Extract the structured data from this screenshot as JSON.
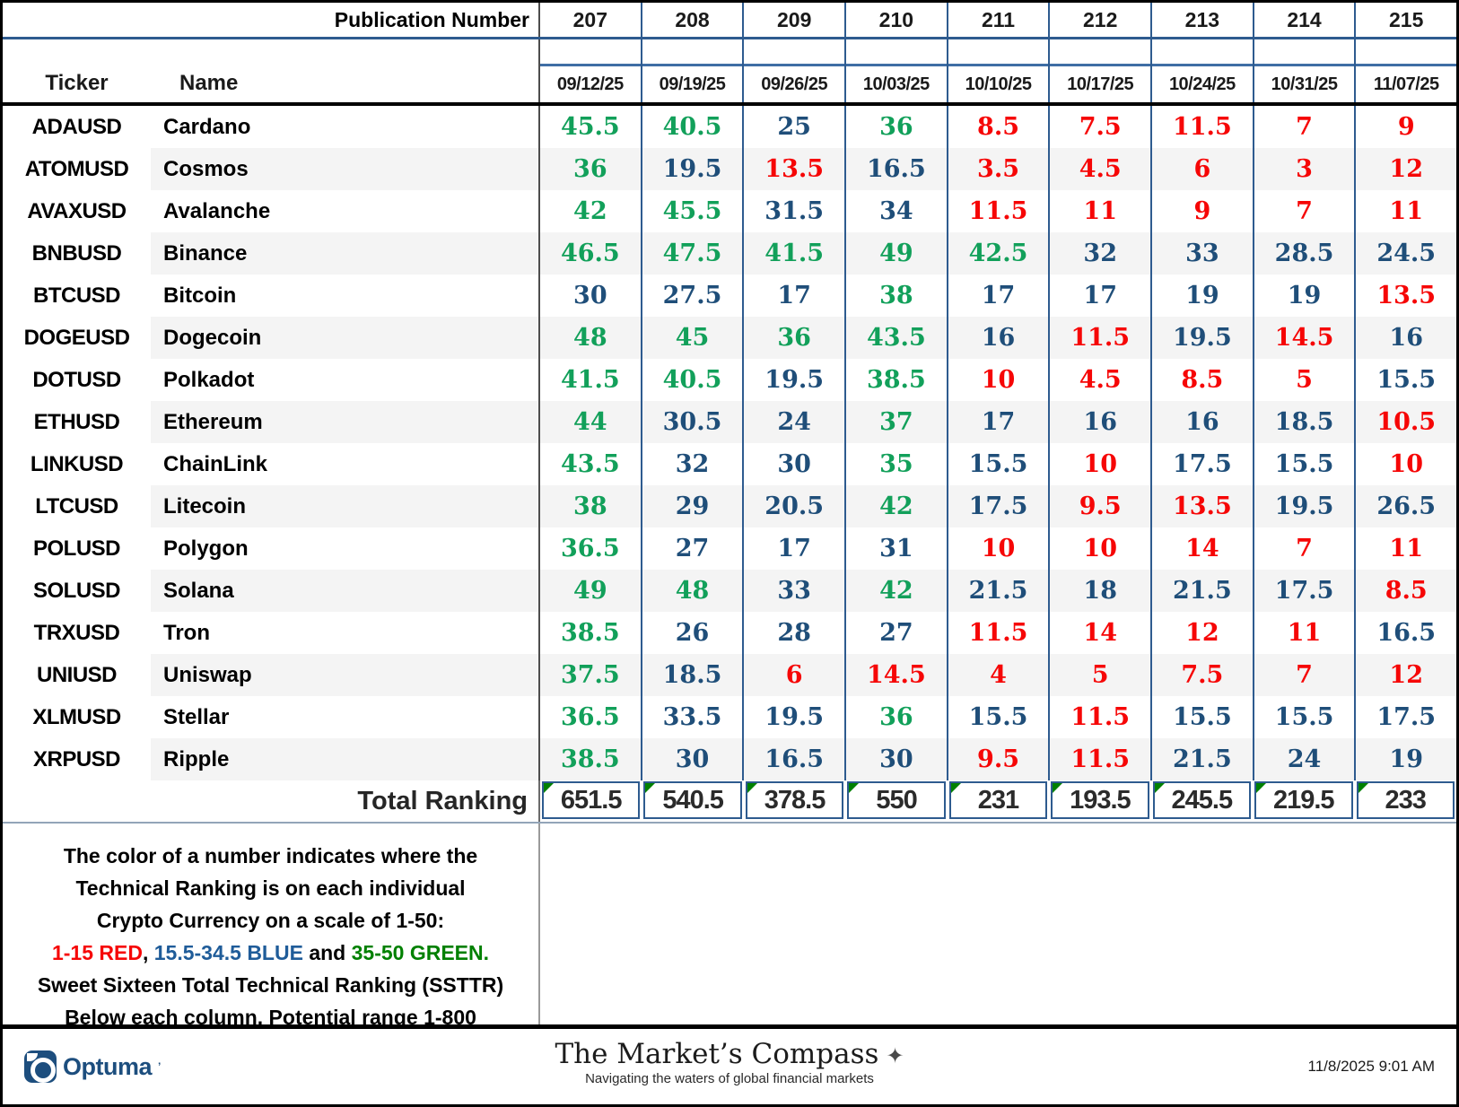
{
  "chart_data": {
    "type": "table",
    "publication_label": "Publication Number",
    "publication_numbers": [
      207,
      208,
      209,
      210,
      211,
      212,
      213,
      214,
      215
    ],
    "date_columns": [
      "09/12/25",
      "09/19/25",
      "09/26/25",
      "10/03/25",
      "10/10/25",
      "10/17/25",
      "10/24/25",
      "10/31/25",
      "11/07/25"
    ],
    "ticker_header": "Ticker",
    "name_header": "Name",
    "rows": [
      {
        "ticker": "ADAUSD",
        "name": "Cardano",
        "values": [
          45.5,
          40.5,
          25,
          36,
          8.5,
          7.5,
          11.5,
          7,
          9
        ]
      },
      {
        "ticker": "ATOMUSD",
        "name": "Cosmos",
        "values": [
          36,
          19.5,
          13.5,
          16.5,
          3.5,
          4.5,
          6,
          3,
          12
        ]
      },
      {
        "ticker": "AVAXUSD",
        "name": "Avalanche",
        "values": [
          42,
          45.5,
          31.5,
          34,
          11.5,
          11,
          9,
          7,
          11
        ]
      },
      {
        "ticker": "BNBUSD",
        "name": "Binance",
        "values": [
          46.5,
          47.5,
          41.5,
          49,
          42.5,
          32,
          33,
          28.5,
          24.5
        ]
      },
      {
        "ticker": "BTCUSD",
        "name": "Bitcoin",
        "values": [
          30,
          27.5,
          17,
          38,
          17,
          17,
          19,
          19,
          13.5
        ]
      },
      {
        "ticker": "DOGEUSD",
        "name": "Dogecoin",
        "values": [
          48,
          45,
          36,
          43.5,
          16,
          11.5,
          19.5,
          14.5,
          16
        ]
      },
      {
        "ticker": "DOTUSD",
        "name": "Polkadot",
        "values": [
          41.5,
          40.5,
          19.5,
          38.5,
          10,
          4.5,
          8.5,
          5,
          15.5
        ]
      },
      {
        "ticker": "ETHUSD",
        "name": "Ethereum",
        "values": [
          44,
          30.5,
          24,
          37,
          17,
          16,
          16,
          18.5,
          10.5
        ]
      },
      {
        "ticker": "LINKUSD",
        "name": "ChainLink",
        "values": [
          43.5,
          32,
          30,
          35,
          15.5,
          10,
          17.5,
          15.5,
          10
        ]
      },
      {
        "ticker": "LTCUSD",
        "name": "Litecoin",
        "values": [
          38,
          29,
          20.5,
          42,
          17.5,
          9.5,
          13.5,
          19.5,
          26.5
        ]
      },
      {
        "ticker": "POLUSD",
        "name": "Polygon",
        "values": [
          36.5,
          27,
          17,
          31,
          10,
          10,
          14,
          7,
          11
        ]
      },
      {
        "ticker": "SOLUSD",
        "name": "Solana",
        "values": [
          49,
          48,
          33,
          42,
          21.5,
          18,
          21.5,
          17.5,
          8.5
        ]
      },
      {
        "ticker": "TRXUSD",
        "name": "Tron",
        "values": [
          38.5,
          26,
          28,
          27,
          11.5,
          14,
          12,
          11,
          16.5
        ]
      },
      {
        "ticker": "UNIUSD",
        "name": "Uniswap",
        "values": [
          37.5,
          18.5,
          6,
          14.5,
          4,
          5,
          7.5,
          7,
          12
        ]
      },
      {
        "ticker": "XLMUSD",
        "name": "Stellar",
        "values": [
          36.5,
          33.5,
          19.5,
          36,
          15.5,
          11.5,
          15.5,
          15.5,
          17.5
        ]
      },
      {
        "ticker": "XRPUSD",
        "name": "Ripple",
        "values": [
          38.5,
          30,
          16.5,
          30,
          9.5,
          11.5,
          21.5,
          24,
          19
        ]
      }
    ],
    "total_label": "Total Ranking",
    "total_values": [
      651.5,
      540.5,
      378.5,
      550,
      231,
      193.5,
      245.5,
      219.5,
      233
    ],
    "value_scale": {
      "red_max": 15,
      "blue_max": 34.5,
      "min": 1,
      "max": 50
    }
  },
  "note": {
    "line1": "The color of a number indicates where the",
    "line2": "Technical Ranking is on each individual",
    "line3": "Crypto Currency on a scale of 1-50:",
    "red_segment": "1-15 RED",
    "sep1": ", ",
    "blue_segment": "15.5-34.5 BLUE",
    "and_word": " and ",
    "green_segment": "35-50 GREEN.",
    "line5": "Sweet Sixteen Total Technical Ranking (SSTTR)",
    "line6": "Below each column.   Potential range 1-800"
  },
  "footer": {
    "brand": "Optuma",
    "brand_tm": "’",
    "title": "The Market’s Compass",
    "compass_glyph": "✦",
    "tagline": "Navigating the waters of global financial markets",
    "timestamp": "11/8/2025 9:01 AM"
  },
  "colors": {
    "value_red": "#f60606",
    "value_blue": "#1f4e79",
    "value_green": "#12a05a",
    "note_red": "#f60606",
    "note_blue": "#1f5c99",
    "note_green": "#008000",
    "border_navy": "#2e5b8f",
    "accent_steel": "#3f6ea5",
    "stripe": "#f4f4f4",
    "triangle_green": "#008000",
    "brand_navy": "#1d4e7e"
  }
}
